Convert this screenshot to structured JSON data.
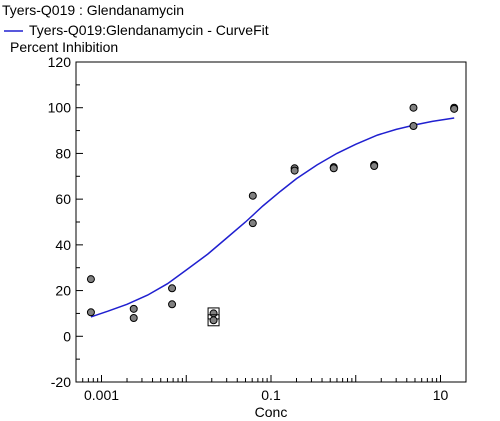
{
  "chart_data": {
    "type": "scatter",
    "title": "Tyers-Q019  :  Glendanamycin",
    "legend": {
      "placement": "top-left",
      "entries": [
        {
          "name": "Tyers-Q019:Glendanamycin - CurveFit",
          "color": "#2020d0"
        }
      ]
    },
    "ylabel": "Percent Inhibition",
    "xlabel": "Conc",
    "x_scale": "log",
    "xlim": [
      0.0005,
      20
    ],
    "ylim": [
      -20,
      120
    ],
    "x_ticks": [
      {
        "value": 0.001,
        "label": "0.001"
      },
      {
        "value": 0.1,
        "label": "0.1"
      },
      {
        "value": 10,
        "label": "10"
      }
    ],
    "y_ticks": [
      {
        "value": -20,
        "label": "-20"
      },
      {
        "value": 0,
        "label": "0"
      },
      {
        "value": 20,
        "label": "20"
      },
      {
        "value": 40,
        "label": "40"
      },
      {
        "value": 60,
        "label": "60"
      },
      {
        "value": 80,
        "label": "80"
      },
      {
        "value": 100,
        "label": "100"
      },
      {
        "value": 120,
        "label": "120"
      }
    ],
    "grid": false,
    "colors": {
      "points": "#808080",
      "curve": "#2020d0"
    },
    "points": [
      {
        "x": 0.00075,
        "y": 25
      },
      {
        "x": 0.00075,
        "y": 10.5
      },
      {
        "x": 0.0024,
        "y": 12
      },
      {
        "x": 0.0024,
        "y": 8
      },
      {
        "x": 0.0068,
        "y": 21
      },
      {
        "x": 0.0068,
        "y": 14
      },
      {
        "x": 0.021,
        "y": 10,
        "excluded": true
      },
      {
        "x": 0.021,
        "y": 7,
        "excluded": true
      },
      {
        "x": 0.061,
        "y": 61.5
      },
      {
        "x": 0.061,
        "y": 49.5
      },
      {
        "x": 0.19,
        "y": 73.5
      },
      {
        "x": 0.19,
        "y": 72.5
      },
      {
        "x": 0.55,
        "y": 74
      },
      {
        "x": 0.55,
        "y": 73.5
      },
      {
        "x": 1.65,
        "y": 75
      },
      {
        "x": 1.65,
        "y": 74.5
      },
      {
        "x": 4.8,
        "y": 100
      },
      {
        "x": 4.8,
        "y": 92
      },
      {
        "x": 14.5,
        "y": 100
      },
      {
        "x": 14.5,
        "y": 99.5
      }
    ],
    "curve_fit": {
      "name": "Tyers-Q019:Glendanamycin - CurveFit",
      "x": [
        0.00075,
        0.0012,
        0.002,
        0.0035,
        0.006,
        0.01,
        0.018,
        0.03,
        0.05,
        0.08,
        0.13,
        0.2,
        0.35,
        0.6,
        1.0,
        1.8,
        3.0,
        5.0,
        8.0,
        14.5
      ],
      "y": [
        8.5,
        11,
        14,
        18,
        23,
        29,
        36,
        43,
        50,
        57,
        63.5,
        69,
        75,
        80,
        84,
        88,
        90.5,
        92.5,
        94,
        95.5
      ]
    }
  }
}
